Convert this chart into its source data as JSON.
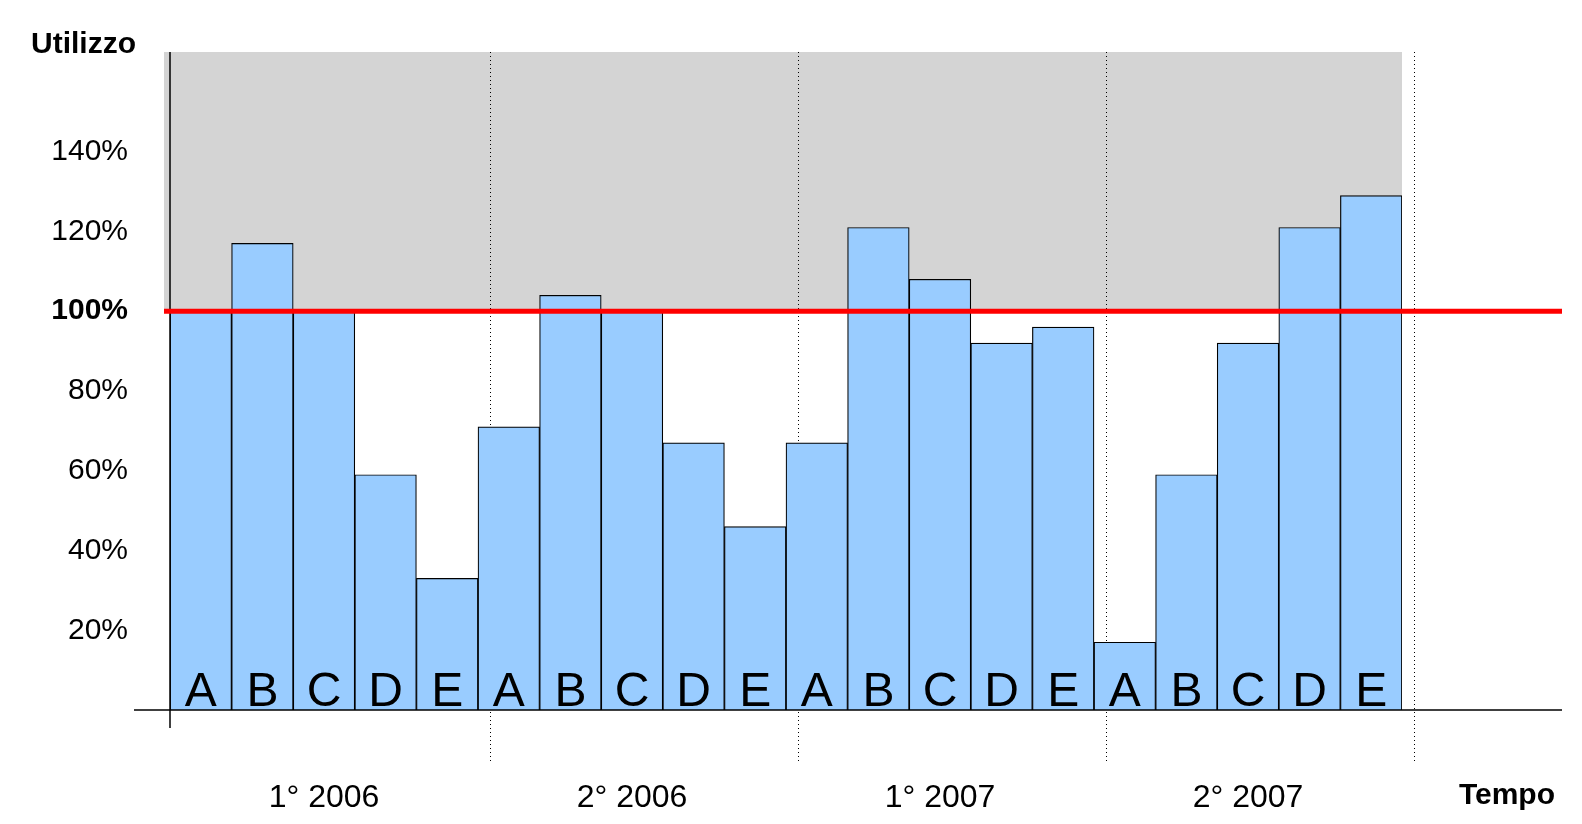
{
  "chart_data": {
    "type": "bar",
    "ylabel": "Utilizzo",
    "xlabel": "Tempo",
    "categories": [
      "A",
      "B",
      "C",
      "D",
      "E",
      "A",
      "B",
      "C",
      "D",
      "E",
      "A",
      "B",
      "C",
      "D",
      "E",
      "A",
      "B",
      "C",
      "D",
      "E"
    ],
    "values": [
      100,
      117,
      100,
      59,
      33,
      71,
      104,
      100,
      67,
      46,
      67,
      121,
      108,
      92,
      96,
      17,
      59,
      92,
      121,
      129
    ],
    "color": "#99ccff",
    "ylim": [
      0,
      165
    ],
    "yticks": [
      {
        "value": 20,
        "label": "20%"
      },
      {
        "value": 40,
        "label": "40%"
      },
      {
        "value": 60,
        "label": "60%"
      },
      {
        "value": 80,
        "label": "80%"
      },
      {
        "value": 100,
        "label": "100%"
      },
      {
        "value": 120,
        "label": "120%"
      },
      {
        "value": 140,
        "label": "140%"
      }
    ],
    "ref_lines": [
      {
        "axis": "y",
        "value": 100,
        "color": "#ff0000"
      }
    ],
    "bands": [
      {
        "axis": "y",
        "from": 100,
        "to": 165,
        "color": "#d4d4d4"
      }
    ],
    "annotations": [
      "1° 2006",
      "2° 2006",
      "1° 2007",
      "2° 2007"
    ],
    "grid": false,
    "legend": false
  }
}
